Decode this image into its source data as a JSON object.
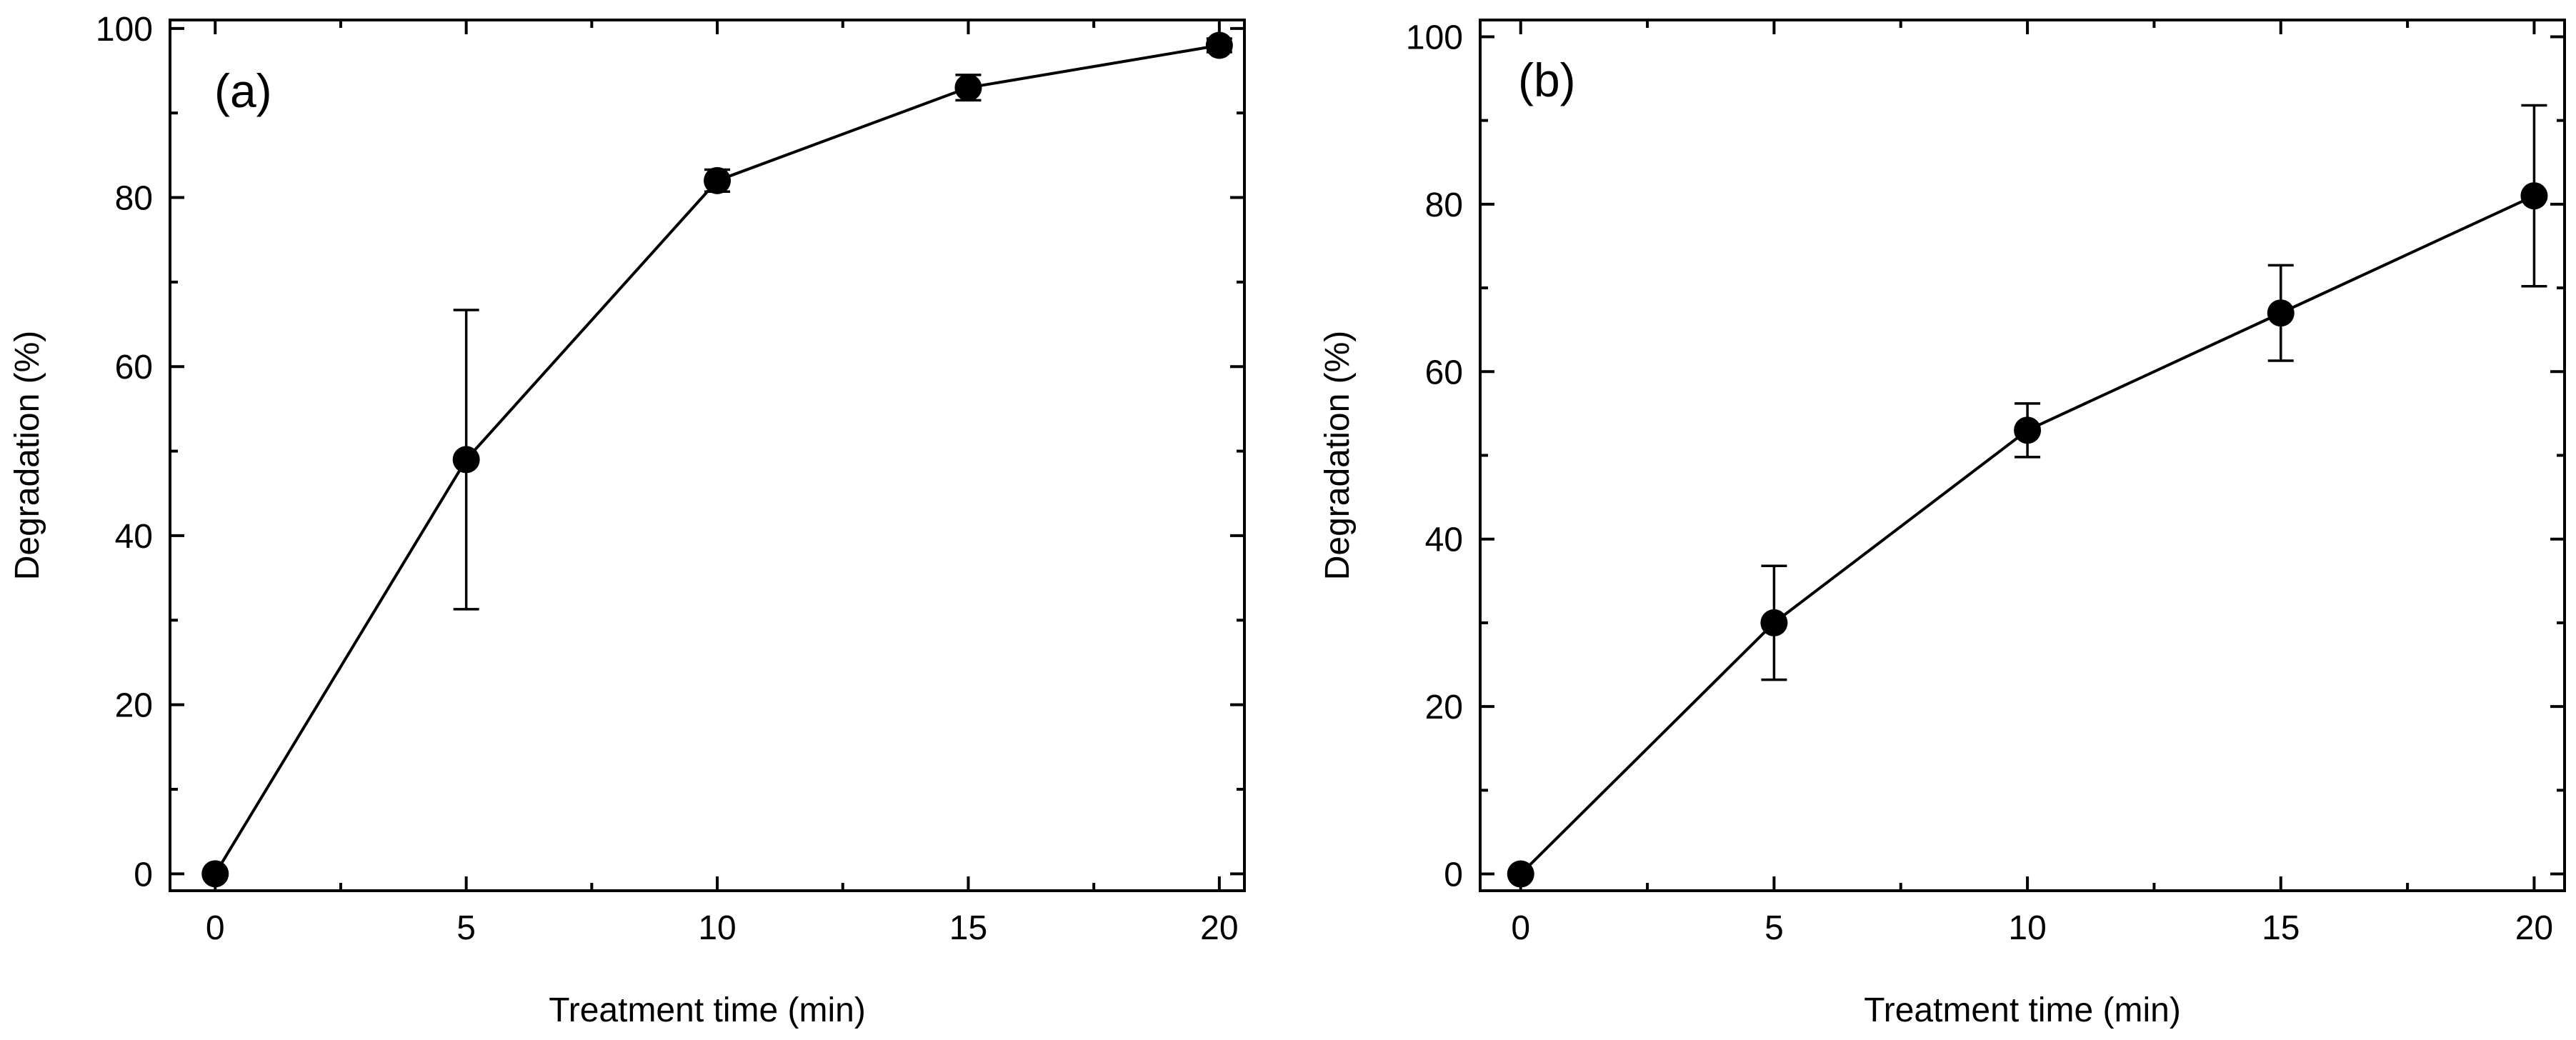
{
  "chart_data": [
    {
      "type": "line",
      "panel_label": "(a)",
      "xlabel": "Treatment time (min)",
      "ylabel": "Degradation (%)",
      "xlim": [
        -0.9,
        20.5
      ],
      "ylim": [
        -2,
        101
      ],
      "x_ticks": [
        0,
        5,
        10,
        15,
        20
      ],
      "x_minor_ticks": [
        2.5,
        7.5,
        12.5,
        17.5
      ],
      "y_ticks": [
        0,
        20,
        40,
        60,
        80,
        100
      ],
      "y_minor_ticks": [
        10,
        30,
        50,
        70,
        90
      ],
      "series": [
        {
          "name": "Degradation",
          "x": [
            0,
            5,
            10,
            15,
            20
          ],
          "y": [
            0,
            49,
            82,
            93,
            98
          ],
          "error": [
            0,
            17.7,
            1.3,
            1.5,
            0.8
          ]
        }
      ]
    },
    {
      "type": "line",
      "panel_label": "(b)",
      "xlabel": "Treatment time (min)",
      "ylabel": "Degradation (%)",
      "xlim": [
        -0.8,
        20.6
      ],
      "ylim": [
        -2,
        102
      ],
      "x_ticks": [
        0,
        5,
        10,
        15,
        20
      ],
      "x_minor_ticks": [
        2.5,
        7.5,
        12.5,
        17.5
      ],
      "y_ticks": [
        0,
        20,
        40,
        60,
        80,
        100
      ],
      "y_minor_ticks": [
        10,
        30,
        50,
        70,
        90
      ],
      "series": [
        {
          "name": "Degradation",
          "x": [
            0,
            5,
            10,
            15,
            20
          ],
          "y": [
            0,
            30,
            53,
            67,
            81
          ],
          "error": [
            0,
            6.8,
            3.2,
            5.7,
            10.8
          ]
        }
      ]
    }
  ]
}
